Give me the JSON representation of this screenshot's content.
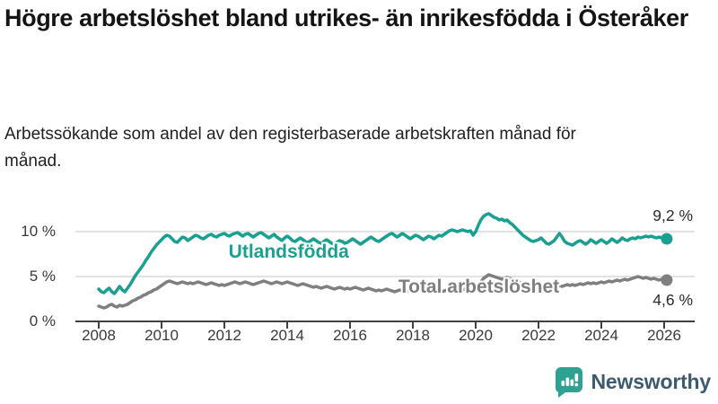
{
  "header": {
    "title": "Högre arbetslöshet bland utrikes- än inrikesfödda i Österåker",
    "subtitle": "Arbetssökande som andel av den registerbaserade arbetskraften månad för månad."
  },
  "branding": {
    "name": "Newsworthy",
    "logo_icon": "speech-bubble-bar-chart-exclamation",
    "logo_color": "#2ea193",
    "text_color": "#3d5b6e"
  },
  "chart_data": {
    "type": "line",
    "title": "Högre arbetslöshet bland utrikes- än inrikesfödda i Österåker",
    "xlabel": "",
    "ylabel": "",
    "x_start": 2008.0,
    "x_step_months": 1,
    "x_end": 2026.08,
    "ylim": [
      0,
      13
    ],
    "grid": "horizontal",
    "legend_position": "inline-labels",
    "axis_color": "#404040",
    "grid_color": "#d8d8d8",
    "x_ticks": [
      {
        "year": 2008,
        "label": "2008"
      },
      {
        "year": 2010,
        "label": "2010"
      },
      {
        "year": 2012,
        "label": "2012"
      },
      {
        "year": 2014,
        "label": "2014"
      },
      {
        "year": 2016,
        "label": "2016"
      },
      {
        "year": 2018,
        "label": "2018"
      },
      {
        "year": 2020,
        "label": "2020"
      },
      {
        "year": 2022,
        "label": "2022"
      },
      {
        "year": 2024,
        "label": "2024"
      },
      {
        "year": 2026,
        "label": "2026"
      }
    ],
    "y_ticks": [
      {
        "value": 0,
        "label": "0 %"
      },
      {
        "value": 5,
        "label": "5 %"
      },
      {
        "value": 10,
        "label": "10 %"
      }
    ],
    "series": [
      {
        "name": "Utlandsfödda",
        "color": "#1aa091",
        "end_value": 9.2,
        "end_label": "9,2 %",
        "end_label_position": "above",
        "label_anchor": {
          "x_year": 2014.05,
          "y_value": 7.7
        },
        "values": [
          3.6,
          3.3,
          3.2,
          3.5,
          3.7,
          3.3,
          3.1,
          3.5,
          3.9,
          3.5,
          3.3,
          3.7,
          4.1,
          4.6,
          5.1,
          5.5,
          5.9,
          6.3,
          6.8,
          7.2,
          7.7,
          8.1,
          8.5,
          8.8,
          9.1,
          9.4,
          9.6,
          9.5,
          9.2,
          8.9,
          8.8,
          9.1,
          9.4,
          9.3,
          9.0,
          9.2,
          9.4,
          9.6,
          9.5,
          9.3,
          9.2,
          9.4,
          9.6,
          9.7,
          9.5,
          9.4,
          9.6,
          9.7,
          9.8,
          9.6,
          9.5,
          9.7,
          9.8,
          9.9,
          9.7,
          9.5,
          9.7,
          9.8,
          9.6,
          9.4,
          9.6,
          9.8,
          9.9,
          9.7,
          9.5,
          9.3,
          9.5,
          9.7,
          9.4,
          9.2,
          9.0,
          9.3,
          9.5,
          9.3,
          9.0,
          8.9,
          9.1,
          9.3,
          9.1,
          8.9,
          8.8,
          9.0,
          9.2,
          9.0,
          8.8,
          8.7,
          8.9,
          9.1,
          8.9,
          8.7,
          8.6,
          8.8,
          9.0,
          8.9,
          8.7,
          8.8,
          9.0,
          9.2,
          9.0,
          8.8,
          8.6,
          8.8,
          9.0,
          9.2,
          9.4,
          9.2,
          9.0,
          8.9,
          9.1,
          9.3,
          9.5,
          9.7,
          9.8,
          9.6,
          9.4,
          9.6,
          9.8,
          9.6,
          9.4,
          9.2,
          9.4,
          9.6,
          9.5,
          9.3,
          9.1,
          9.3,
          9.5,
          9.4,
          9.2,
          9.4,
          9.6,
          9.5,
          9.7,
          9.9,
          10.1,
          10.2,
          10.1,
          10.0,
          10.1,
          10.2,
          10.1,
          10.0,
          10.1,
          9.6,
          10.0,
          10.7,
          11.3,
          11.7,
          11.9,
          12.0,
          11.8,
          11.6,
          11.5,
          11.3,
          11.4,
          11.2,
          11.3,
          11.0,
          10.8,
          10.5,
          10.2,
          9.9,
          9.6,
          9.4,
          9.2,
          9.0,
          8.9,
          9.0,
          9.1,
          9.3,
          9.0,
          8.7,
          8.6,
          8.8,
          9.0,
          9.4,
          9.8,
          9.4,
          8.9,
          8.7,
          8.6,
          8.5,
          8.7,
          8.9,
          9.0,
          8.8,
          8.6,
          8.8,
          9.1,
          8.9,
          8.7,
          8.9,
          9.1,
          8.9,
          8.7,
          8.9,
          9.2,
          9.0,
          8.8,
          9.0,
          9.3,
          9.1,
          9.0,
          9.2,
          9.3,
          9.2,
          9.4,
          9.3,
          9.4,
          9.5,
          9.4,
          9.5,
          9.4,
          9.3,
          9.4,
          9.3,
          9.2,
          9.2
        ]
      },
      {
        "name": "Total arbetslöshet",
        "color": "#7f7f7f",
        "end_value": 4.6,
        "end_label": "4,6 %",
        "end_label_position": "below",
        "label_anchor": {
          "x_year": 2020.1,
          "y_value": 3.85
        },
        "values": [
          1.7,
          1.6,
          1.5,
          1.6,
          1.8,
          1.9,
          1.7,
          1.6,
          1.8,
          1.7,
          1.8,
          1.9,
          2.1,
          2.3,
          2.4,
          2.6,
          2.7,
          2.9,
          3.0,
          3.2,
          3.3,
          3.5,
          3.6,
          3.8,
          4.0,
          4.2,
          4.4,
          4.5,
          4.4,
          4.3,
          4.2,
          4.3,
          4.4,
          4.3,
          4.2,
          4.3,
          4.2,
          4.3,
          4.4,
          4.3,
          4.2,
          4.1,
          4.2,
          4.3,
          4.2,
          4.1,
          4.0,
          4.1,
          4.0,
          4.1,
          4.2,
          4.3,
          4.4,
          4.3,
          4.2,
          4.3,
          4.4,
          4.3,
          4.2,
          4.1,
          4.2,
          4.3,
          4.4,
          4.5,
          4.4,
          4.3,
          4.2,
          4.3,
          4.4,
          4.3,
          4.2,
          4.3,
          4.4,
          4.3,
          4.2,
          4.1,
          4.0,
          4.1,
          4.2,
          4.1,
          4.0,
          3.9,
          3.8,
          3.9,
          3.8,
          3.7,
          3.8,
          3.9,
          3.8,
          3.7,
          3.6,
          3.7,
          3.8,
          3.7,
          3.6,
          3.7,
          3.6,
          3.7,
          3.8,
          3.7,
          3.6,
          3.5,
          3.6,
          3.7,
          3.6,
          3.5,
          3.4,
          3.5,
          3.4,
          3.5,
          3.6,
          3.5,
          3.4,
          3.3,
          3.4,
          3.5,
          3.4,
          3.3,
          3.4,
          3.5,
          3.4,
          3.3,
          3.4,
          3.5,
          3.4,
          3.3,
          3.2,
          3.3,
          3.4,
          3.3,
          3.2,
          3.3,
          3.4,
          3.5,
          3.6,
          3.5,
          3.4,
          3.5,
          3.6,
          3.5,
          3.6,
          3.7,
          3.6,
          3.7,
          3.8,
          4.0,
          4.4,
          4.8,
          5.0,
          5.2,
          5.1,
          5.0,
          4.9,
          4.8,
          4.7,
          4.8,
          4.9,
          4.8,
          4.7,
          4.6,
          4.5,
          4.3,
          4.2,
          4.1,
          4.0,
          3.9,
          3.8,
          3.9,
          3.8,
          3.9,
          3.8,
          3.7,
          3.8,
          3.9,
          3.8,
          3.9,
          4.0,
          3.9,
          4.0,
          4.1,
          4.0,
          4.1,
          4.0,
          4.1,
          4.2,
          4.1,
          4.2,
          4.3,
          4.2,
          4.3,
          4.2,
          4.3,
          4.4,
          4.3,
          4.4,
          4.5,
          4.4,
          4.5,
          4.6,
          4.5,
          4.6,
          4.7,
          4.6,
          4.7,
          4.8,
          4.9,
          5.0,
          4.9,
          4.8,
          4.9,
          4.8,
          4.7,
          4.8,
          4.7,
          4.6,
          4.7,
          4.6,
          4.6
        ]
      }
    ]
  }
}
